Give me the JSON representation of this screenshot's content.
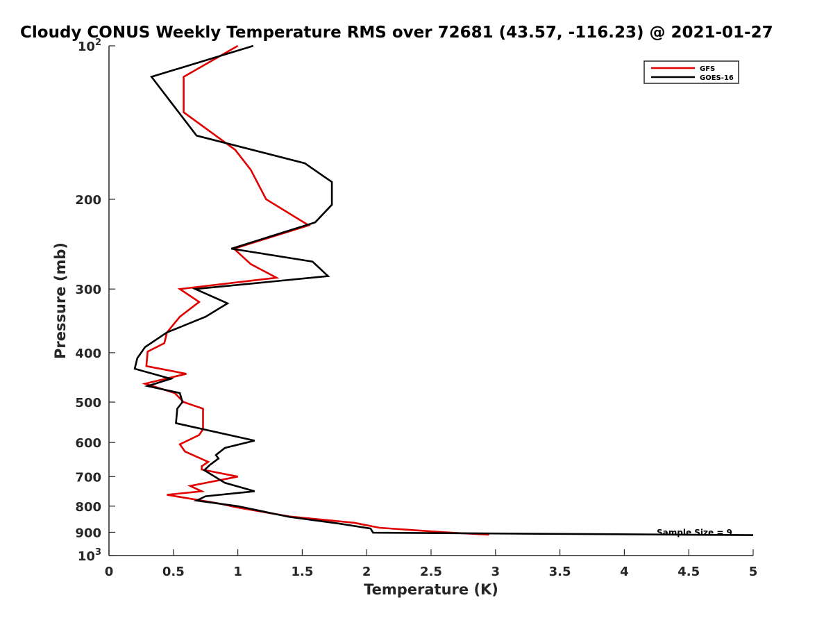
{
  "chart_data": {
    "type": "line",
    "title": "Cloudy CONUS Weekly Temperature RMS over 72681 (43.57, -116.23) @ 2021-01-27",
    "xlabel": "Temperature (K)",
    "ylabel": "Pressure (mb)",
    "xlim": [
      0,
      5
    ],
    "ylim": [
      100,
      1000
    ],
    "y_scale": "log",
    "y_reversed": true,
    "grid": false,
    "legend_position": "top-right",
    "x_ticks": [
      "0",
      "0.5",
      "1",
      "1.5",
      "2",
      "2.5",
      "3",
      "3.5",
      "4",
      "4.5",
      "5"
    ],
    "y_ticks": [
      {
        "value": 100,
        "base": "10",
        "exp": "2"
      },
      {
        "value": 200,
        "label": "200"
      },
      {
        "value": 300,
        "label": "300"
      },
      {
        "value": 400,
        "label": "400"
      },
      {
        "value": 500,
        "label": "500"
      },
      {
        "value": 600,
        "label": "600"
      },
      {
        "value": 700,
        "label": "700"
      },
      {
        "value": 800,
        "label": "800"
      },
      {
        "value": 900,
        "label": "900"
      },
      {
        "value": 1000,
        "base": "10",
        "exp": "3"
      }
    ],
    "annotation": "Sample Size = 9",
    "series": [
      {
        "name": "GFS",
        "color": "#e00000",
        "points": [
          [
            1.0,
            100
          ],
          [
            0.58,
            115
          ],
          [
            0.58,
            135
          ],
          [
            0.98,
            160
          ],
          [
            1.1,
            175
          ],
          [
            1.22,
            200
          ],
          [
            1.55,
            225
          ],
          [
            0.97,
            250
          ],
          [
            1.1,
            268
          ],
          [
            1.3,
            285
          ],
          [
            0.55,
            300
          ],
          [
            0.7,
            318
          ],
          [
            0.55,
            340
          ],
          [
            0.45,
            365
          ],
          [
            0.43,
            383
          ],
          [
            0.3,
            398
          ],
          [
            0.29,
            425
          ],
          [
            0.6,
            440
          ],
          [
            0.28,
            460
          ],
          [
            0.51,
            480
          ],
          [
            0.58,
            500
          ],
          [
            0.73,
            515
          ],
          [
            0.73,
            565
          ],
          [
            0.7,
            580
          ],
          [
            0.55,
            605
          ],
          [
            0.59,
            625
          ],
          [
            0.77,
            655
          ],
          [
            0.72,
            668
          ],
          [
            0.72,
            678
          ],
          [
            1.0,
            700
          ],
          [
            0.63,
            730
          ],
          [
            0.72,
            748
          ],
          [
            0.45,
            760
          ],
          [
            0.85,
            790
          ],
          [
            1.0,
            805
          ],
          [
            1.4,
            838
          ],
          [
            1.9,
            862
          ],
          [
            2.1,
            882
          ],
          [
            2.6,
            900
          ],
          [
            2.95,
            910
          ]
        ]
      },
      {
        "name": "GOES-16",
        "color": "#000000",
        "points": [
          [
            1.12,
            100
          ],
          [
            0.33,
            115
          ],
          [
            0.68,
            150
          ],
          [
            1.52,
            170
          ],
          [
            1.73,
            185
          ],
          [
            1.73,
            205
          ],
          [
            1.6,
            222
          ],
          [
            0.95,
            250
          ],
          [
            1.58,
            265
          ],
          [
            1.7,
            283
          ],
          [
            0.67,
            300
          ],
          [
            0.92,
            320
          ],
          [
            0.75,
            340
          ],
          [
            0.45,
            365
          ],
          [
            0.28,
            390
          ],
          [
            0.22,
            410
          ],
          [
            0.2,
            430
          ],
          [
            0.48,
            450
          ],
          [
            0.3,
            465
          ],
          [
            0.55,
            480
          ],
          [
            0.57,
            500
          ],
          [
            0.53,
            515
          ],
          [
            0.52,
            550
          ],
          [
            1.13,
            595
          ],
          [
            0.9,
            615
          ],
          [
            0.83,
            635
          ],
          [
            0.85,
            645
          ],
          [
            0.78,
            665
          ],
          [
            0.74,
            680
          ],
          [
            0.9,
            720
          ],
          [
            1.13,
            748
          ],
          [
            0.75,
            765
          ],
          [
            0.68,
            780
          ],
          [
            1.0,
            800
          ],
          [
            1.4,
            840
          ],
          [
            1.78,
            865
          ],
          [
            2.03,
            885
          ],
          [
            2.05,
            902
          ],
          [
            5.0,
            912
          ]
        ]
      }
    ]
  }
}
